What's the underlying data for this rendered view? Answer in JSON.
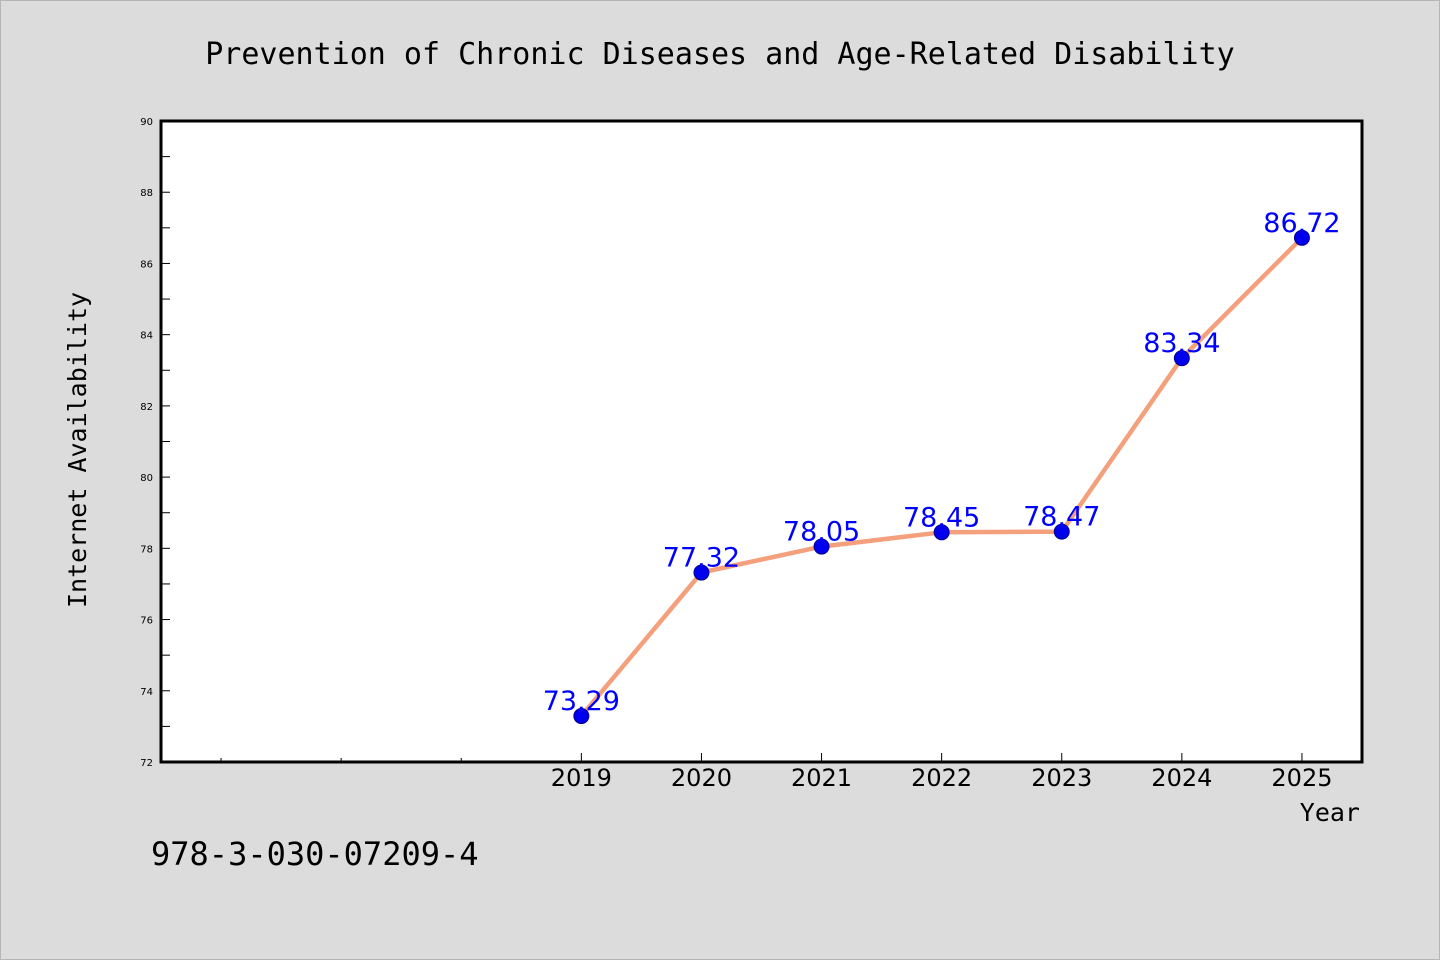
{
  "chart_data": {
    "type": "line",
    "title": "Prevention of Chronic Diseases and Age-Related Disability",
    "xlabel": "Year",
    "ylabel": "Internet Availability",
    "categories": [
      "2019",
      "2020",
      "2021",
      "2022",
      "2023",
      "2024",
      "2025"
    ],
    "series": [
      {
        "values": [
          73.29,
          77.32,
          78.05,
          78.45,
          78.47,
          83.34,
          86.72
        ],
        "line_color": "#f4a07c",
        "marker_color": "#0000ee"
      }
    ],
    "data_labels": [
      "73.29",
      "77.32",
      "78.05",
      "78.45",
      "78.47",
      "83.34",
      "86.72"
    ],
    "x_range": [
      2015.5,
      2025.5
    ],
    "ylim": [
      72,
      90
    ],
    "y_ticks": [
      72,
      74,
      76,
      78,
      80,
      82,
      84,
      86,
      88,
      90
    ],
    "y_tick_labels": [
      "72",
      "74",
      "76",
      "78",
      "80",
      "82",
      "84",
      "86",
      "88",
      "90"
    ],
    "x_minor_ticks": [
      2016,
      2017,
      2018
    ],
    "y_minor_ticks": [
      73,
      75,
      77,
      79,
      81,
      83,
      85,
      87,
      89
    ],
    "grid": false,
    "label_color": "#0000ff",
    "background": "#dcdcdc",
    "plot_background": "#ffffff"
  },
  "annotation": {
    "code": "978-3-030-07209-4"
  }
}
